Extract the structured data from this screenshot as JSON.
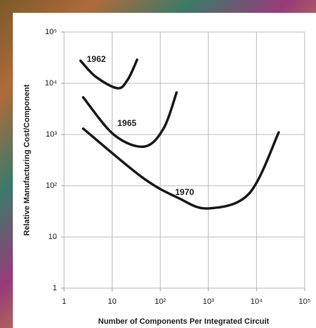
{
  "chart_data": {
    "type": "line",
    "x_label": "Number of Components Per Integrated Circuit",
    "y_label": "Relative Manufacturing Cost/Component",
    "xscale": "log",
    "yscale": "log",
    "grid": true,
    "xlim": [
      1,
      100000
    ],
    "ylim": [
      1,
      100000
    ],
    "xticks": [
      1,
      10,
      {
        "value": 100,
        "label": "10²"
      },
      {
        "value": 1000,
        "label": "10³"
      },
      {
        "value": 10000,
        "label": "10⁴"
      },
      {
        "value": 100000,
        "label": "10⁵"
      }
    ],
    "yticks": [
      1,
      10,
      {
        "value": 100,
        "label": "10²"
      },
      {
        "value": 1000,
        "label": "10³"
      },
      {
        "value": 10000,
        "label": "10⁴"
      },
      {
        "value": 100000,
        "label": "10⁵"
      }
    ],
    "series": [
      {
        "name": "1962",
        "color": "#1a1a1a",
        "x": [
          2.2,
          4.6,
          12.9,
          21,
          33
        ],
        "values": [
          27500,
          13300,
          8000,
          11700,
          28800
        ]
      },
      {
        "name": "1965",
        "color": "#1a1a1a",
        "x": [
          2.5,
          11,
          47,
          118,
          218
        ],
        "values": [
          5300,
          980,
          580,
          1330,
          6600
        ]
      },
      {
        "name": "1970",
        "color": "#1a1a1a",
        "x": [
          2.5,
          42,
          234,
          980,
          7000,
          29000
        ],
        "values": [
          1300,
          146,
          58,
          36,
          70,
          1100
        ]
      }
    ]
  }
}
